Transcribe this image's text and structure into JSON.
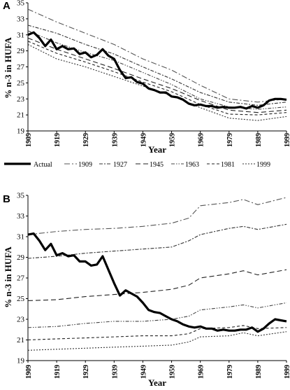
{
  "panels": [
    {
      "label": "A"
    },
    {
      "label": "B"
    }
  ],
  "legend": [
    {
      "key": "actual",
      "label": "Actual",
      "dash": "solid-thick"
    },
    {
      "key": "s1909",
      "label": "1909",
      "dash": "dashdot-long"
    },
    {
      "key": "s1927",
      "label": "1927",
      "dash": "dashdot"
    },
    {
      "key": "s1945",
      "label": "1945",
      "dash": "dash-long"
    },
    {
      "key": "s1963",
      "label": "1963",
      "dash": "dashdotdot"
    },
    {
      "key": "s1981",
      "label": "1981",
      "dash": "dash-short"
    },
    {
      "key": "s1999",
      "label": "1999",
      "dash": "dash-medium"
    }
  ],
  "chart_data": [
    {
      "panel": "A",
      "type": "line",
      "xlabel": "Year",
      "ylabel": "% n-3 in HUFA",
      "xlim": [
        1909,
        1999
      ],
      "ylim": [
        19,
        35
      ],
      "xticks": [
        1909,
        1919,
        1929,
        1939,
        1949,
        1959,
        1969,
        1979,
        1989,
        1999
      ],
      "yticks": [
        19,
        21,
        23,
        25,
        27,
        29,
        31,
        33,
        35
      ],
      "grid": false,
      "legend_position": "below",
      "series": [
        {
          "name": "Actual",
          "x": [
            1909,
            1911,
            1913,
            1915,
            1917,
            1919,
            1921,
            1923,
            1925,
            1927,
            1929,
            1931,
            1933,
            1935,
            1937,
            1939,
            1941,
            1943,
            1945,
            1947,
            1949,
            1951,
            1953,
            1955,
            1957,
            1959,
            1961,
            1963,
            1965,
            1967,
            1969,
            1971,
            1973,
            1975,
            1977,
            1979,
            1981,
            1983,
            1985,
            1987,
            1989,
            1991,
            1993,
            1995,
            1997,
            1999
          ],
          "values": [
            31.0,
            31.3,
            30.6,
            29.6,
            30.4,
            29.2,
            29.6,
            29.2,
            29.3,
            28.6,
            28.8,
            28.2,
            28.5,
            29.2,
            28.4,
            28.0,
            26.6,
            25.6,
            25.7,
            25.1,
            24.9,
            24.3,
            24.1,
            23.8,
            23.8,
            23.3,
            23.2,
            22.9,
            22.4,
            22.2,
            22.3,
            22.1,
            22.1,
            21.9,
            22.0,
            21.9,
            21.9,
            22.0,
            21.8,
            22.1,
            21.9,
            22.2,
            22.8,
            23.0,
            23.0,
            22.9
          ]
        },
        {
          "name": "1909",
          "x": [
            1909,
            1919,
            1929,
            1939,
            1949,
            1959,
            1969,
            1979,
            1989,
            1999
          ],
          "values": [
            34.2,
            32.6,
            31.2,
            29.8,
            28.0,
            26.6,
            24.7,
            23.0,
            22.6,
            23.0
          ]
        },
        {
          "name": "1927",
          "x": [
            1909,
            1919,
            1929,
            1939,
            1949,
            1959,
            1969,
            1979,
            1989,
            1999
          ],
          "values": [
            32.2,
            31.2,
            29.8,
            28.6,
            27.0,
            25.5,
            23.8,
            22.6,
            22.2,
            22.6
          ]
        },
        {
          "name": "1945",
          "x": [
            1909,
            1919,
            1929,
            1939,
            1949,
            1959,
            1969,
            1979,
            1989,
            1999
          ],
          "values": [
            30.6,
            29.2,
            28.0,
            26.8,
            25.5,
            24.3,
            22.8,
            21.6,
            21.3,
            21.6
          ]
        },
        {
          "name": "1963",
          "x": [
            1909,
            1919,
            1929,
            1939,
            1949,
            1959,
            1969,
            1979,
            1989,
            1999
          ],
          "values": [
            31.5,
            30.0,
            28.8,
            27.8,
            26.3,
            24.8,
            23.0,
            22.0,
            21.7,
            22.0
          ]
        },
        {
          "name": "1981",
          "x": [
            1909,
            1919,
            1929,
            1939,
            1949,
            1959,
            1969,
            1979,
            1989,
            1999
          ],
          "values": [
            30.2,
            28.7,
            27.6,
            26.4,
            25.1,
            23.9,
            22.3,
            21.1,
            21.0,
            21.3
          ]
        },
        {
          "name": "1999",
          "x": [
            1909,
            1919,
            1929,
            1939,
            1949,
            1959,
            1969,
            1979,
            1989,
            1999
          ],
          "values": [
            29.8,
            28.0,
            27.0,
            25.8,
            24.6,
            23.4,
            21.9,
            20.6,
            20.3,
            20.8
          ]
        }
      ]
    },
    {
      "panel": "B",
      "type": "line",
      "xlabel": "Year",
      "ylabel": "% n-3 in HUFA",
      "xlim": [
        1909,
        1999
      ],
      "ylim": [
        19,
        35
      ],
      "xticks": [
        1909,
        1919,
        1929,
        1939,
        1949,
        1959,
        1969,
        1979,
        1989,
        1999
      ],
      "yticks": [
        19,
        21,
        23,
        25,
        27,
        29,
        31,
        33,
        35
      ],
      "grid": false,
      "series": [
        {
          "name": "Actual",
          "x": [
            1909,
            1911,
            1913,
            1915,
            1917,
            1919,
            1921,
            1923,
            1925,
            1927,
            1929,
            1931,
            1933,
            1935,
            1937,
            1939,
            1941,
            1943,
            1945,
            1947,
            1949,
            1951,
            1953,
            1955,
            1957,
            1959,
            1961,
            1963,
            1965,
            1967,
            1969,
            1971,
            1973,
            1975,
            1977,
            1979,
            1981,
            1983,
            1985,
            1987,
            1989,
            1991,
            1993,
            1995,
            1997,
            1999
          ],
          "values": [
            31.2,
            31.3,
            30.6,
            29.7,
            30.3,
            29.2,
            29.4,
            29.1,
            29.2,
            28.6,
            28.6,
            28.2,
            28.3,
            29.1,
            27.8,
            26.5,
            25.3,
            25.8,
            25.5,
            25.2,
            24.6,
            23.9,
            23.7,
            23.6,
            23.3,
            23.0,
            22.8,
            22.5,
            22.3,
            22.2,
            22.3,
            22.1,
            22.1,
            21.9,
            22.0,
            21.9,
            21.9,
            22.0,
            22.0,
            22.2,
            21.8,
            22.1,
            22.6,
            23.0,
            22.9,
            22.8
          ]
        },
        {
          "name": "1909",
          "x": [
            1909,
            1919,
            1929,
            1939,
            1949,
            1959,
            1965,
            1969,
            1979,
            1984,
            1989,
            1999
          ],
          "values": [
            31.2,
            31.5,
            31.7,
            31.8,
            32.0,
            32.3,
            32.8,
            34.0,
            34.3,
            34.6,
            34.1,
            34.8
          ]
        },
        {
          "name": "1927",
          "x": [
            1909,
            1919,
            1929,
            1939,
            1949,
            1959,
            1965,
            1969,
            1979,
            1984,
            1989,
            1999
          ],
          "values": [
            28.9,
            29.1,
            29.4,
            29.6,
            29.8,
            30.0,
            30.6,
            31.2,
            31.8,
            32.0,
            31.7,
            32.2
          ]
        },
        {
          "name": "1945",
          "x": [
            1909,
            1919,
            1929,
            1939,
            1949,
            1959,
            1965,
            1969,
            1979,
            1984,
            1989,
            1999
          ],
          "values": [
            24.8,
            24.9,
            25.2,
            25.4,
            25.6,
            25.9,
            26.3,
            27.0,
            27.4,
            27.7,
            27.3,
            27.8
          ]
        },
        {
          "name": "1963",
          "x": [
            1909,
            1919,
            1929,
            1939,
            1949,
            1959,
            1965,
            1969,
            1979,
            1984,
            1989,
            1999
          ],
          "values": [
            22.2,
            22.3,
            22.6,
            22.8,
            22.8,
            23.0,
            23.3,
            23.9,
            24.2,
            24.4,
            24.1,
            24.6
          ]
        },
        {
          "name": "1981",
          "x": [
            1909,
            1919,
            1929,
            1939,
            1949,
            1959,
            1965,
            1969,
            1979,
            1984,
            1989,
            1999
          ],
          "values": [
            21.0,
            21.1,
            21.2,
            21.3,
            21.4,
            21.4,
            21.6,
            22.1,
            22.2,
            22.4,
            22.1,
            22.2
          ]
        },
        {
          "name": "1999",
          "x": [
            1909,
            1919,
            1929,
            1939,
            1949,
            1959,
            1965,
            1969,
            1979,
            1984,
            1989,
            1999
          ],
          "values": [
            20.0,
            20.1,
            20.2,
            20.3,
            20.4,
            20.5,
            20.8,
            21.3,
            21.4,
            21.7,
            21.4,
            21.8
          ]
        }
      ]
    }
  ]
}
